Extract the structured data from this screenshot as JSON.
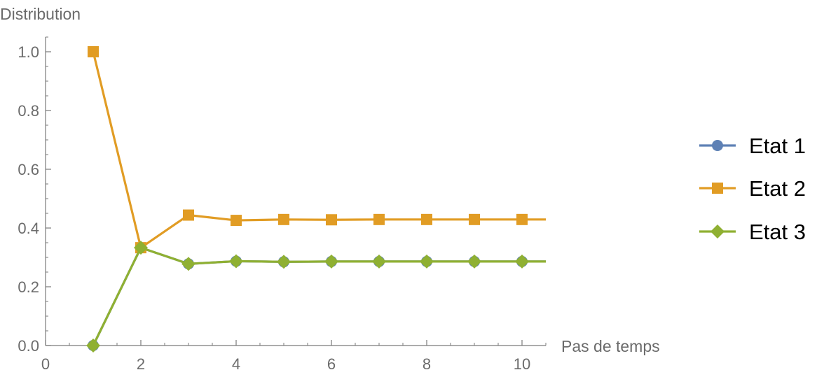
{
  "chart_data": {
    "type": "line",
    "ylabel": "Distribution",
    "xlabel": "Pas de temps",
    "xlim": [
      0,
      10.5
    ],
    "ylim": [
      0,
      1.05
    ],
    "xticks": [
      0,
      2,
      4,
      6,
      8,
      10
    ],
    "xtick_labels": [
      "0",
      "2",
      "4",
      "6",
      "8",
      "10"
    ],
    "yticks": [
      0,
      0.2,
      0.4,
      0.6,
      0.8,
      1.0
    ],
    "ytick_labels": [
      "0.0",
      "0.2",
      "0.4",
      "0.6",
      "0.8",
      "1.0"
    ],
    "grid": false,
    "legend": "right",
    "x": [
      1,
      2,
      3,
      4,
      5,
      6,
      7,
      8,
      9,
      10
    ],
    "series": [
      {
        "name": "Etat 1",
        "color": "#5E81B5",
        "marker": "circle",
        "values": [
          0,
          0.333,
          0.278,
          0.287,
          0.285,
          0.286,
          0.286,
          0.286,
          0.286,
          0.286
        ]
      },
      {
        "name": "Etat 2",
        "color": "#E19C24",
        "marker": "square",
        "values": [
          1,
          0.333,
          0.444,
          0.426,
          0.429,
          0.428,
          0.429,
          0.429,
          0.429,
          0.429
        ]
      },
      {
        "name": "Etat 3",
        "color": "#8FB032",
        "marker": "diamond",
        "values": [
          0,
          0.333,
          0.278,
          0.287,
          0.285,
          0.286,
          0.286,
          0.286,
          0.286,
          0.286
        ]
      }
    ]
  }
}
